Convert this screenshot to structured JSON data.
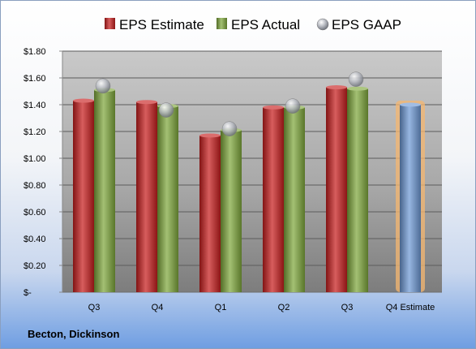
{
  "company_label": "Becton, Dickinson",
  "chart_data": {
    "type": "bar",
    "categories": [
      "Q3",
      "Q4",
      "Q1",
      "Q2",
      "Q3",
      "Q4 Estimate"
    ],
    "series": [
      {
        "name": "EPS Estimate",
        "color": "#c81e1e",
        "values": [
          1.43,
          1.42,
          1.17,
          1.38,
          1.53,
          null
        ]
      },
      {
        "name": "EPS Actual",
        "color": "#7fa83c",
        "values": [
          1.51,
          1.39,
          1.21,
          1.38,
          1.52,
          null
        ]
      },
      {
        "name": "EPS GAAP",
        "color": "#b8bcc4",
        "marker": "sphere",
        "values": [
          1.54,
          1.36,
          1.22,
          1.39,
          1.59,
          null
        ]
      },
      {
        "name": "",
        "color": "#6f9ad6",
        "highlight": "#f5b770",
        "values": [
          null,
          null,
          null,
          null,
          null,
          1.4
        ]
      }
    ],
    "yticks": [
      "$-",
      "$0.20",
      "$0.40",
      "$0.60",
      "$0.80",
      "$1.00",
      "$1.20",
      "$1.40",
      "$1.60",
      "$1.80"
    ],
    "ylim": [
      0,
      1.8
    ],
    "grid": true,
    "legend_position": "top",
    "title": "",
    "xlabel": "",
    "ylabel": ""
  }
}
